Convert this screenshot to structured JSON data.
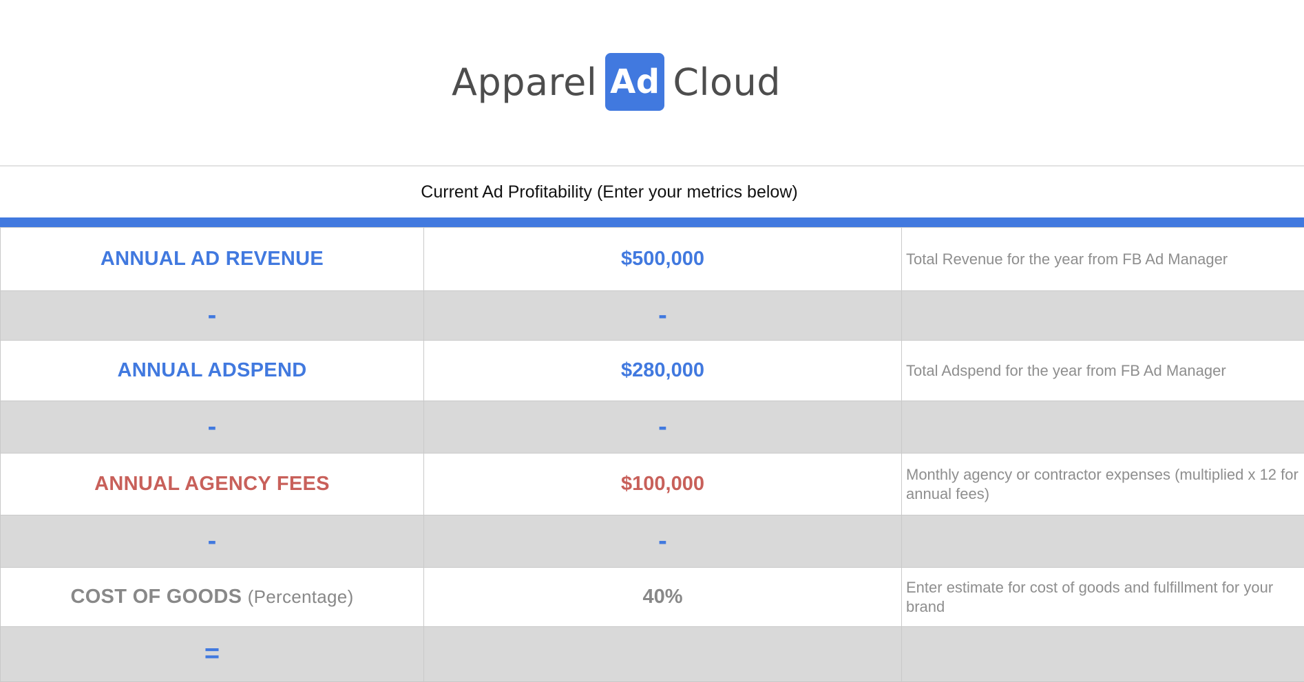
{
  "logo": {
    "left": "Apparel",
    "box": "Ad",
    "right": "Cloud"
  },
  "subtitle": "Current Ad Profitability (Enter your metrics below)",
  "rows": [
    {
      "label": "ANNUAL AD REVENUE",
      "value": "$500,000",
      "note": "Total Revenue for the year from FB Ad Manager"
    },
    {
      "label": "ANNUAL ADSPEND",
      "value": "$280,000",
      "note": "Total Adspend for the year from FB Ad Manager"
    },
    {
      "label": "ANNUAL AGENCY FEES",
      "value": "$100,000",
      "note": "Monthly agency or contractor expenses (multiplied x 12 for annual fees)"
    },
    {
      "label": "COST OF GOODS",
      "label_suffix": "(Percentage)",
      "value": "40%",
      "note": "Enter estimate for cost of goods and fulfillment for your brand"
    }
  ],
  "operators": {
    "minus": "-",
    "equals": "="
  },
  "colors": {
    "accent": "#4179df",
    "fees": "#c8605a",
    "muted": "#888888",
    "separator": "#d9d9d9"
  }
}
